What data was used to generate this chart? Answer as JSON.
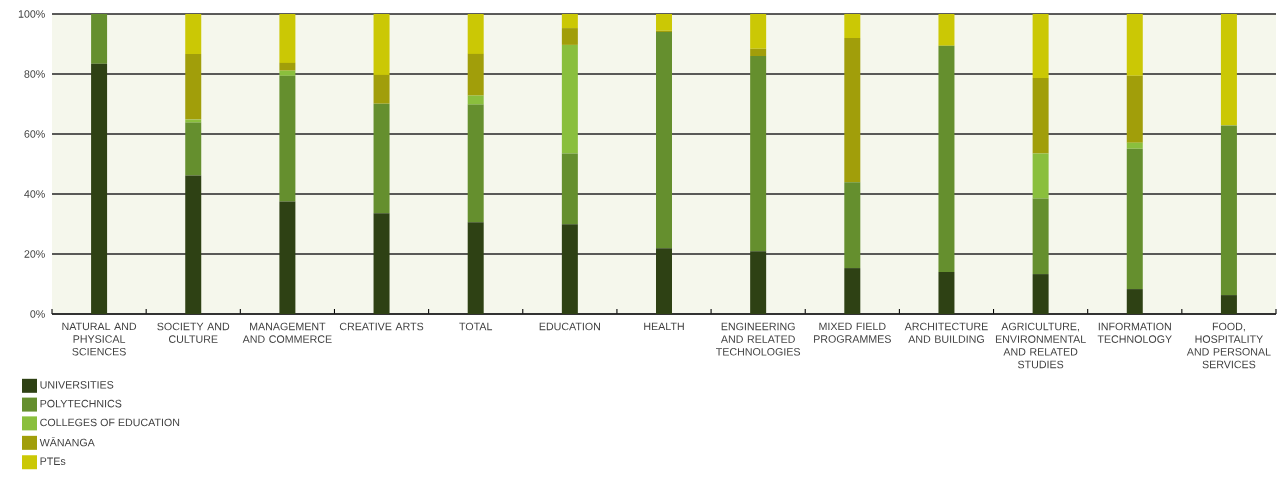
{
  "chart_data": {
    "type": "bar",
    "stacked": true,
    "categories": [
      "NATURAL AND PHYSICAL SCIENCES",
      "SOCIETY AND CULTURE",
      "MANAGEMENT AND COMMERCE",
      "CREATIVE ARTS",
      "TOTAL",
      "EDUCATION",
      "HEALTH",
      "ENGINEERING AND RELATED TECHNOLOGIES",
      "MIXED FIELD PROGRAMMES",
      "ARCHITECTURE AND BUILDING",
      "AGRICULTURE, ENVIRONMENTAL AND RELATED STUDIES",
      "INFORMATION TECHNOLOGY",
      "FOOD, HOSPITALITY AND PERSONAL SERVICES"
    ],
    "series": [
      {
        "name": "UNIVERSITIES",
        "color": "#2e4114",
        "values": [
          83.4,
          46.2,
          37.5,
          33.6,
          30.6,
          29.9,
          21.9,
          20.9,
          15.3,
          14.0,
          13.3,
          8.3,
          6.3
        ]
      },
      {
        "name": "POLYTECHNICS",
        "color": "#658f2e",
        "values": [
          16.6,
          17.6,
          41.9,
          36.5,
          39.2,
          23.6,
          72.1,
          65.1,
          28.6,
          75.4,
          25.2,
          46.8,
          56.5
        ]
      },
      {
        "name": "COLLEGES OF EDUCATION",
        "color": "#8abf3d",
        "values": [
          0,
          1.0,
          1.7,
          0,
          3.0,
          36.2,
          0,
          0,
          0,
          0,
          15.0,
          2.0,
          0
        ]
      },
      {
        "name": "WĀNANGA",
        "color": "#a19e0a",
        "values": [
          0,
          21.9,
          2.6,
          9.6,
          13.9,
          5.6,
          0.4,
          2.4,
          48.1,
          0,
          25.2,
          22.3,
          0
        ]
      },
      {
        "name": "PTEs",
        "color": "#cbc805",
        "values": [
          0,
          13.3,
          16.3,
          20.3,
          13.3,
          4.7,
          5.6,
          11.6,
          8.0,
          10.6,
          21.3,
          20.6,
          37.2
        ]
      }
    ],
    "ylim": [
      0,
      100
    ],
    "yticks": [
      {
        "value": 0,
        "label": "0%"
      },
      {
        "value": 20,
        "label": "20%"
      },
      {
        "value": 40,
        "label": "40%"
      },
      {
        "value": 60,
        "label": "60%"
      },
      {
        "value": 80,
        "label": "80%"
      },
      {
        "value": 100,
        "label": "100%"
      }
    ],
    "grid": "y",
    "legend": "bottom left"
  }
}
